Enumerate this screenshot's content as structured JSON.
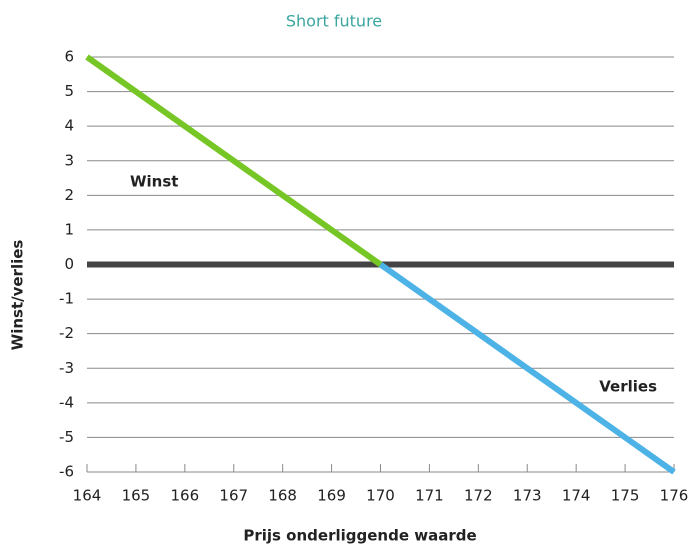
{
  "chart_data": {
    "type": "line",
    "title": "Short future",
    "xlabel": "Prijs onderliggende waarde",
    "ylabel": "Winst/verlies",
    "series": [
      {
        "name": "Winst",
        "color": "#76c626",
        "x": [
          164,
          170
        ],
        "values": [
          6,
          0
        ]
      },
      {
        "name": "Verlies",
        "color": "#4db3e6",
        "x": [
          170,
          176
        ],
        "values": [
          0,
          -6
        ]
      }
    ],
    "xlim": [
      164,
      176
    ],
    "xticks": [
      164,
      165,
      166,
      167,
      168,
      169,
      170,
      171,
      172,
      173,
      174,
      175,
      176
    ],
    "ylim": [
      -6,
      6
    ],
    "yticks": [
      6,
      5,
      4,
      3,
      2,
      1,
      0,
      -1,
      -2,
      -3,
      -4,
      -5,
      -6
    ],
    "grid": true
  }
}
